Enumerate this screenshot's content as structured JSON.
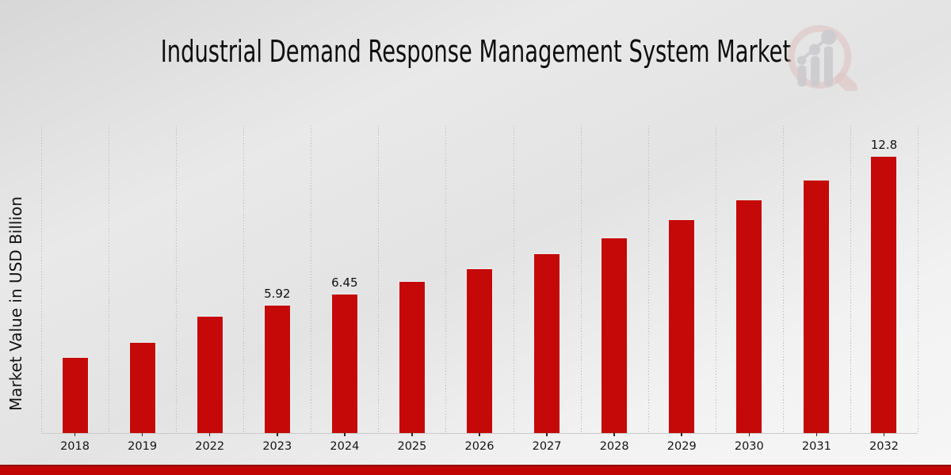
{
  "title": "Industrial Demand Response Management System Market",
  "ylabel": "Market Value in USD Billion",
  "colors": {
    "bar": "#c50909",
    "bar_edge": "#ececec",
    "footer_band": "#c10505",
    "footer_band_border": "#920d0d",
    "gridline": "#b9b9b9",
    "logo_pink": "#dcbcbc",
    "logo_gray": "#c5c5c9"
  },
  "logo": {
    "name": "market-research-magnifier-logo"
  },
  "chart_data": {
    "type": "bar",
    "title": "Industrial Demand Response Management System Market",
    "xlabel": "",
    "ylabel": "Market Value in USD Billion",
    "categories": [
      "2018",
      "2019",
      "2022",
      "2023",
      "2024",
      "2025",
      "2026",
      "2027",
      "2028",
      "2029",
      "2030",
      "2031",
      "2032"
    ],
    "values": [
      3.5,
      4.2,
      5.4,
      5.92,
      6.45,
      7.02,
      7.62,
      8.3,
      9.05,
      9.88,
      10.78,
      11.72,
      12.8
    ],
    "data_labels": [
      null,
      null,
      null,
      "5.92",
      "6.45",
      null,
      null,
      null,
      null,
      null,
      null,
      null,
      "12.8"
    ],
    "ylim": [
      0,
      14.2
    ],
    "y_tick_labels": "none",
    "grid": "vertical dotted lines at category boundaries",
    "legend": "none",
    "bar_color": "#c50909"
  }
}
